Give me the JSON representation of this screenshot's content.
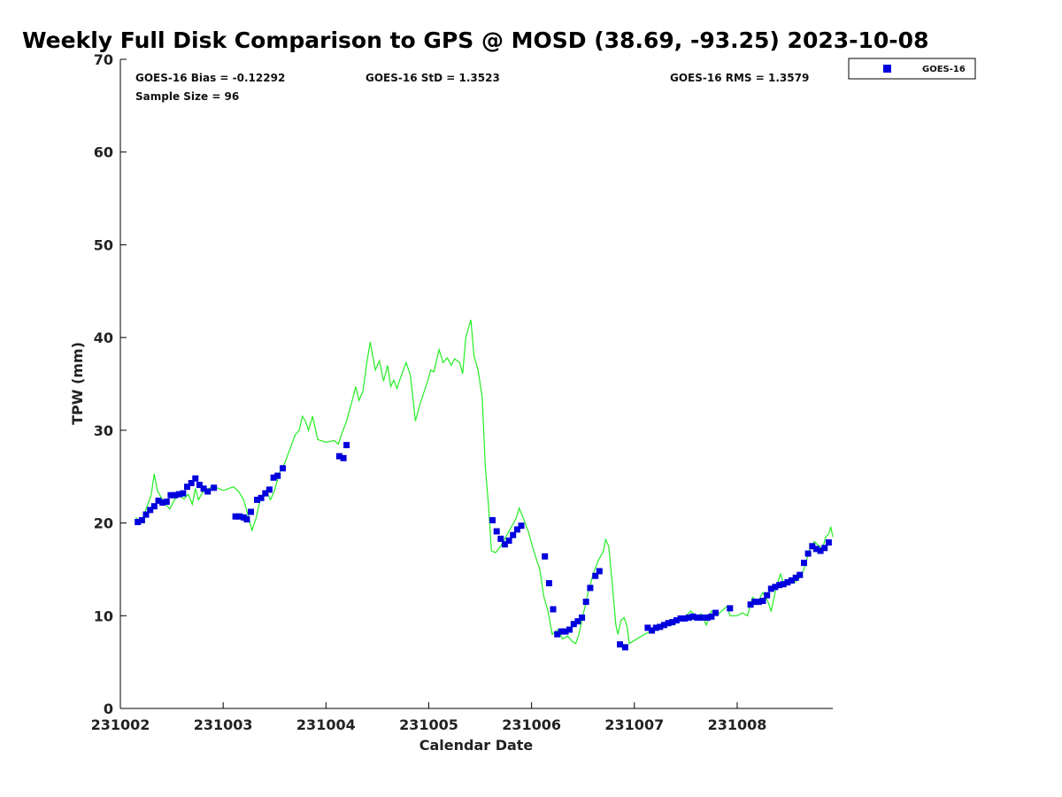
{
  "chart_data": {
    "type": "scatter",
    "title": "Weekly Full Disk Comparison to GPS @ MOSD (38.69, -93.25) 2023-10-08",
    "xlabel": "Calendar Date",
    "ylabel": "TPW (mm)",
    "xlim": [
      2.0,
      8.93
    ],
    "ylim": [
      0,
      70
    ],
    "x_ticks": [
      {
        "value": 2,
        "label": "231002"
      },
      {
        "value": 3,
        "label": "231003"
      },
      {
        "value": 4,
        "label": "231004"
      },
      {
        "value": 5,
        "label": "231005"
      },
      {
        "value": 6,
        "label": "231006"
      },
      {
        "value": 7,
        "label": "231007"
      },
      {
        "value": 8,
        "label": "231008"
      }
    ],
    "y_ticks": [
      {
        "value": 0,
        "label": "0"
      },
      {
        "value": 10,
        "label": "10"
      },
      {
        "value": 20,
        "label": "20"
      },
      {
        "value": 30,
        "label": "30"
      },
      {
        "value": 40,
        "label": "40"
      },
      {
        "value": 50,
        "label": "50"
      },
      {
        "value": 60,
        "label": "60"
      },
      {
        "value": 70,
        "label": "70"
      }
    ],
    "stats": {
      "bias": "GOES-16 Bias = -0.12292",
      "std": "GOES-16 StD = 1.3523",
      "rms": "GOES-16 RMS = 1.3579",
      "sample_size": "Sample Size = 96"
    },
    "legend": {
      "position": "top-right",
      "entries": [
        {
          "name": "GOES-16",
          "marker": "square",
          "color": "#0000dd"
        }
      ]
    },
    "series": [
      {
        "name": "GPS",
        "kind": "line",
        "color": "#22ee22",
        "points": [
          [
            2.15,
            20.6
          ],
          [
            2.2,
            20.0
          ],
          [
            2.25,
            21.5
          ],
          [
            2.3,
            23.0
          ],
          [
            2.33,
            25.3
          ],
          [
            2.36,
            23.5
          ],
          [
            2.42,
            22.3
          ],
          [
            2.48,
            21.5
          ],
          [
            2.53,
            22.6
          ],
          [
            2.58,
            22.9
          ],
          [
            2.62,
            22.6
          ],
          [
            2.66,
            23.1
          ],
          [
            2.7,
            22.0
          ],
          [
            2.73,
            23.7
          ],
          [
            2.76,
            22.5
          ],
          [
            2.8,
            23.3
          ],
          [
            2.85,
            23.6
          ],
          [
            2.9,
            24.0
          ],
          [
            3.0,
            23.5
          ],
          [
            3.1,
            23.9
          ],
          [
            3.15,
            23.4
          ],
          [
            3.2,
            22.5
          ],
          [
            3.25,
            20.5
          ],
          [
            3.28,
            19.2
          ],
          [
            3.32,
            20.5
          ],
          [
            3.36,
            22.5
          ],
          [
            3.42,
            23.5
          ],
          [
            3.46,
            22.5
          ],
          [
            3.5,
            23.5
          ],
          [
            3.55,
            25.5
          ],
          [
            3.6,
            26.5
          ],
          [
            3.65,
            28.0
          ],
          [
            3.7,
            29.5
          ],
          [
            3.74,
            30.0
          ],
          [
            3.77,
            31.5
          ],
          [
            3.8,
            31.0
          ],
          [
            3.83,
            30.0
          ],
          [
            3.87,
            31.5
          ],
          [
            3.92,
            29.0
          ],
          [
            4.0,
            28.7
          ],
          [
            4.08,
            28.9
          ],
          [
            4.12,
            28.5
          ],
          [
            4.15,
            29.5
          ],
          [
            4.2,
            31.0
          ],
          [
            4.25,
            33.0
          ],
          [
            4.29,
            34.7
          ],
          [
            4.32,
            33.2
          ],
          [
            4.36,
            34.2
          ],
          [
            4.4,
            37.5
          ],
          [
            4.43,
            39.5
          ],
          [
            4.48,
            36.5
          ],
          [
            4.52,
            37.5
          ],
          [
            4.56,
            35.3
          ],
          [
            4.6,
            37.0
          ],
          [
            4.63,
            34.7
          ],
          [
            4.66,
            35.4
          ],
          [
            4.69,
            34.5
          ],
          [
            4.73,
            35.8
          ],
          [
            4.78,
            37.3
          ],
          [
            4.82,
            36.0
          ],
          [
            4.85,
            33.0
          ],
          [
            4.87,
            31.0
          ],
          [
            4.92,
            33.0
          ],
          [
            4.98,
            35.0
          ],
          [
            5.02,
            36.5
          ],
          [
            5.05,
            36.3
          ],
          [
            5.1,
            38.7
          ],
          [
            5.14,
            37.3
          ],
          [
            5.18,
            37.8
          ],
          [
            5.22,
            37.0
          ],
          [
            5.25,
            37.7
          ],
          [
            5.3,
            37.3
          ],
          [
            5.33,
            36.1
          ],
          [
            5.36,
            40.0
          ],
          [
            5.41,
            41.9
          ],
          [
            5.44,
            38.0
          ],
          [
            5.48,
            36.5
          ],
          [
            5.52,
            33.5
          ],
          [
            5.55,
            26.0
          ],
          [
            5.58,
            22.0
          ],
          [
            5.61,
            17.0
          ],
          [
            5.65,
            16.8
          ],
          [
            5.7,
            17.5
          ],
          [
            5.75,
            18.5
          ],
          [
            5.8,
            19.5
          ],
          [
            5.85,
            20.5
          ],
          [
            5.88,
            21.6
          ],
          [
            5.92,
            20.5
          ],
          [
            5.97,
            19.0
          ],
          [
            6.02,
            17.0
          ],
          [
            6.08,
            15.0
          ],
          [
            6.12,
            12.0
          ],
          [
            6.16,
            10.5
          ],
          [
            6.2,
            8.0
          ],
          [
            6.26,
            8.5
          ],
          [
            6.3,
            7.5
          ],
          [
            6.35,
            7.8
          ],
          [
            6.4,
            7.2
          ],
          [
            6.43,
            7.0
          ],
          [
            6.46,
            8.0
          ],
          [
            6.5,
            10.0
          ],
          [
            6.55,
            12.5
          ],
          [
            6.6,
            14.5
          ],
          [
            6.65,
            16.0
          ],
          [
            6.7,
            17.0
          ],
          [
            6.72,
            18.2
          ],
          [
            6.75,
            17.5
          ],
          [
            6.78,
            14.0
          ],
          [
            6.82,
            9.0
          ],
          [
            6.84,
            8.0
          ],
          [
            6.87,
            9.5
          ],
          [
            6.9,
            9.8
          ],
          [
            6.93,
            8.8
          ],
          [
            6.95,
            7.0
          ],
          [
            7.1,
            8.0
          ],
          [
            7.25,
            8.8
          ],
          [
            7.4,
            9.5
          ],
          [
            7.5,
            10.0
          ],
          [
            7.55,
            10.5
          ],
          [
            7.6,
            9.8
          ],
          [
            7.65,
            10.2
          ],
          [
            7.7,
            9.0
          ],
          [
            7.75,
            10.5
          ],
          [
            7.8,
            10.0
          ],
          [
            7.85,
            10.5
          ],
          [
            7.9,
            11.0
          ],
          [
            7.93,
            10.0
          ],
          [
            8.0,
            10.0
          ],
          [
            8.05,
            10.3
          ],
          [
            8.1,
            10.0
          ],
          [
            8.15,
            12.0
          ],
          [
            8.2,
            11.5
          ],
          [
            8.25,
            12.5
          ],
          [
            8.3,
            11.5
          ],
          [
            8.33,
            10.5
          ],
          [
            8.38,
            13.0
          ],
          [
            8.42,
            14.5
          ],
          [
            8.46,
            13.2
          ],
          [
            8.5,
            13.8
          ],
          [
            8.55,
            13.5
          ],
          [
            8.6,
            14.0
          ],
          [
            8.65,
            15.0
          ],
          [
            8.7,
            17.0
          ],
          [
            8.75,
            18.0
          ],
          [
            8.8,
            17.5
          ],
          [
            8.83,
            17.2
          ],
          [
            8.86,
            18.5
          ],
          [
            8.89,
            18.8
          ],
          [
            8.91,
            19.6
          ],
          [
            8.93,
            18.5
          ]
        ]
      },
      {
        "name": "GOES-16",
        "kind": "scatter",
        "color": "#0000dd",
        "marker": "square",
        "points": [
          [
            2.17,
            20.1
          ],
          [
            2.21,
            20.3
          ],
          [
            2.25,
            20.9
          ],
          [
            2.29,
            21.4
          ],
          [
            2.33,
            21.8
          ],
          [
            2.37,
            22.4
          ],
          [
            2.41,
            22.2
          ],
          [
            2.45,
            22.3
          ],
          [
            2.49,
            23.0
          ],
          [
            2.53,
            23.0
          ],
          [
            2.57,
            23.1
          ],
          [
            2.61,
            23.2
          ],
          [
            2.65,
            23.9
          ],
          [
            2.69,
            24.3
          ],
          [
            2.73,
            24.8
          ],
          [
            2.77,
            24.1
          ],
          [
            2.81,
            23.7
          ],
          [
            2.85,
            23.4
          ],
          [
            2.91,
            23.8
          ],
          [
            3.12,
            20.7
          ],
          [
            3.16,
            20.7
          ],
          [
            3.2,
            20.6
          ],
          [
            3.23,
            20.4
          ],
          [
            3.27,
            21.2
          ],
          [
            3.33,
            22.5
          ],
          [
            3.37,
            22.7
          ],
          [
            3.41,
            23.2
          ],
          [
            3.45,
            23.6
          ],
          [
            3.49,
            24.9
          ],
          [
            3.53,
            25.1
          ],
          [
            3.58,
            25.9
          ],
          [
            4.13,
            27.2
          ],
          [
            4.17,
            27.0
          ],
          [
            4.2,
            28.4
          ],
          [
            5.62,
            20.3
          ],
          [
            5.66,
            19.1
          ],
          [
            5.7,
            18.3
          ],
          [
            5.74,
            17.7
          ],
          [
            5.78,
            18.1
          ],
          [
            5.82,
            18.7
          ],
          [
            5.86,
            19.3
          ],
          [
            5.9,
            19.7
          ],
          [
            6.13,
            16.4
          ],
          [
            6.17,
            13.5
          ],
          [
            6.21,
            10.7
          ],
          [
            6.25,
            8.0
          ],
          [
            6.29,
            8.3
          ],
          [
            6.33,
            8.3
          ],
          [
            6.37,
            8.5
          ],
          [
            6.41,
            9.1
          ],
          [
            6.45,
            9.4
          ],
          [
            6.49,
            9.8
          ],
          [
            6.53,
            11.5
          ],
          [
            6.57,
            13.0
          ],
          [
            6.62,
            14.3
          ],
          [
            6.66,
            14.8
          ],
          [
            6.86,
            6.9
          ],
          [
            6.91,
            6.6
          ],
          [
            7.13,
            8.7
          ],
          [
            7.17,
            8.4
          ],
          [
            7.21,
            8.7
          ],
          [
            7.25,
            8.8
          ],
          [
            7.29,
            9.0
          ],
          [
            7.33,
            9.2
          ],
          [
            7.37,
            9.3
          ],
          [
            7.41,
            9.5
          ],
          [
            7.45,
            9.7
          ],
          [
            7.49,
            9.7
          ],
          [
            7.53,
            9.8
          ],
          [
            7.57,
            9.9
          ],
          [
            7.61,
            9.8
          ],
          [
            7.65,
            9.8
          ],
          [
            7.71,
            9.8
          ],
          [
            7.75,
            9.9
          ],
          [
            7.79,
            10.3
          ],
          [
            7.93,
            10.8
          ],
          [
            8.13,
            11.2
          ],
          [
            8.17,
            11.5
          ],
          [
            8.21,
            11.5
          ],
          [
            8.25,
            11.6
          ],
          [
            8.29,
            12.2
          ],
          [
            8.33,
            12.9
          ],
          [
            8.37,
            13.1
          ],
          [
            8.41,
            13.3
          ],
          [
            8.45,
            13.4
          ],
          [
            8.49,
            13.6
          ],
          [
            8.53,
            13.8
          ],
          [
            8.57,
            14.1
          ],
          [
            8.61,
            14.4
          ],
          [
            8.65,
            15.7
          ],
          [
            8.69,
            16.7
          ],
          [
            8.73,
            17.5
          ],
          [
            8.77,
            17.2
          ],
          [
            8.81,
            17.0
          ],
          [
            8.85,
            17.3
          ],
          [
            8.89,
            17.9
          ]
        ]
      }
    ]
  }
}
